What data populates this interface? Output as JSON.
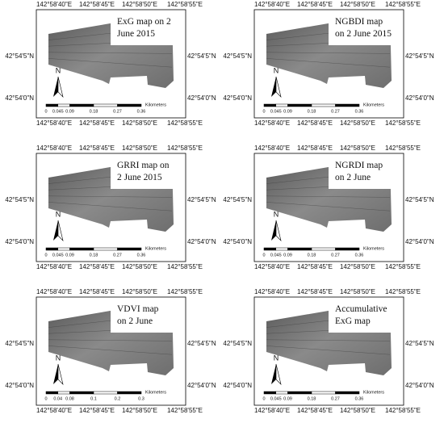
{
  "panels": [
    {
      "title": [
        "ExG map on 2",
        "June 2015"
      ],
      "top_labels": [
        "142°58'40\"E",
        "142°58'45\"E",
        "142°58'50\"E",
        "142°58'55\"E"
      ],
      "bottom_labels": [
        "142°58'40\"E",
        "142°58'45\"E",
        "142°58'50\"E",
        "142°58'55\"E"
      ],
      "left_labels": [
        "42°54'5\"N",
        "42°54'0\"N"
      ],
      "right_labels": [
        "42°54'5\"N",
        "42°54'0\"N"
      ],
      "north": "N",
      "scale_labels": [
        "0",
        "0.045",
        "0.09",
        "0.18",
        "0.27",
        "0.36"
      ],
      "scale_unit": "Kilometers"
    },
    {
      "title": [
        "NGBDI map",
        "on 2 June 2015"
      ],
      "top_labels": [
        "142°58'40\"E",
        "142°58'45\"E",
        "142°58'50\"E",
        "142°58'55\"E"
      ],
      "bottom_labels": [
        "142°58'40\"E",
        "142°58'45\"E",
        "142°58'50\"E",
        "142°58'55\"E"
      ],
      "left_labels": [
        "42°54'5\"N",
        "42°54'0\"N"
      ],
      "right_labels": [
        "42°54'5\"N",
        "42°54'0\"N"
      ],
      "north": "N",
      "scale_labels": [
        "0",
        "0.045",
        "0.09",
        "0.18",
        "0.27",
        "0.36"
      ],
      "scale_unit": "Kilometers"
    },
    {
      "title": [
        "GRRI map on",
        "2 June 2015"
      ],
      "top_labels": [
        "142°58'40\"E",
        "142°58'45\"E",
        "142°58'50\"E",
        "142°58'55\"E"
      ],
      "bottom_labels": [
        "142°58'40\"E",
        "142°58'45\"E",
        "142°58'50\"E",
        "142°58'55\"E"
      ],
      "left_labels": [
        "42°54'5\"N",
        "42°54'0\"N"
      ],
      "right_labels": [
        "42°54'5\"N",
        "42°54'0\"N"
      ],
      "north": "N",
      "scale_labels": [
        "0",
        "0.045",
        "0.09",
        "0.18",
        "0.27",
        "0.36"
      ],
      "scale_unit": "Kilometers"
    },
    {
      "title": [
        "NGRDI map",
        "on 2 June"
      ],
      "top_labels": [
        "142°58'40\"E",
        "142°58'45\"E",
        "142°58'50\"E",
        "142°58'55\"E"
      ],
      "bottom_labels": [
        "142°58'40\"E",
        "142°58'45\"E",
        "142°58'50\"E",
        "142°58'55\"E"
      ],
      "left_labels": [
        "42°54'5\"N",
        "42°54'0\"N"
      ],
      "right_labels": [
        "42°54'5\"N",
        "42°54'0\"N"
      ],
      "north": "N",
      "scale_labels": [
        "0",
        "0.045",
        "0.09",
        "0.18",
        "0.27",
        "0.36"
      ],
      "scale_unit": "Kilometers"
    },
    {
      "title": [
        "VDVI map",
        "on 2 June"
      ],
      "top_labels": [
        "142°58'40\"E",
        "142°58'45\"E",
        "142°58'50\"E",
        "142°58'55\"E"
      ],
      "bottom_labels": [
        "142°58'40\"E",
        "142°58'45\"E",
        "142°58'50\"E",
        "142°58'55\"E"
      ],
      "left_labels": [
        "42°54'5\"N",
        "42°54'0\"N"
      ],
      "right_labels": [
        "42°54'5\"N",
        "42°54'0\"N"
      ],
      "north": "N",
      "scale_labels": [
        "0",
        "0.04",
        "0.08",
        "0.1",
        "0.2",
        "0.3"
      ],
      "scale_unit": "Kilometers"
    },
    {
      "title": [
        "Accumulative",
        "ExG map"
      ],
      "top_labels": [
        "142°58'40\"E",
        "142°58'45\"E",
        "142°58'50\"E",
        "142°58'55\"E"
      ],
      "bottom_labels": [
        "142°58'40\"E",
        "142°58'45\"E",
        "142°58'50\"E",
        "142°58'55\"E"
      ],
      "left_labels": [
        "42°54'5\"N",
        "42°54'0\"N"
      ],
      "right_labels": [
        "42°54'5\"N",
        "42°54'0\"N"
      ],
      "north": "N",
      "scale_labels": [
        "0",
        "0.045",
        "0.09",
        "0.18",
        "0.27",
        "0.36"
      ],
      "scale_unit": "Kilometers"
    }
  ]
}
